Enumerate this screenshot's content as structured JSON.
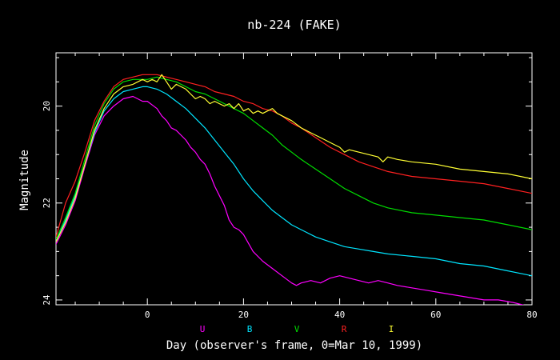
{
  "chart_data": {
    "type": "line",
    "title": "nb-224 (FAKE)",
    "xlabel": "Day (observer's frame, 0=Mar 10, 1999)",
    "ylabel": "Magnitude",
    "xlim": [
      -19,
      80
    ],
    "ylim": [
      24.1,
      18.9
    ],
    "y_inverted": true,
    "x_ticks": [
      0,
      20,
      40,
      60,
      80
    ],
    "y_ticks": [
      20,
      22,
      24
    ],
    "grid": false,
    "legend_position": "bottom",
    "background": "#000000",
    "axis_color": "#ffffff",
    "series": [
      {
        "name": "U",
        "color": "#ff00ff",
        "x": [
          -19,
          -17,
          -15,
          -13,
          -11,
          -9,
          -7,
          -5,
          -3,
          -1,
          0,
          2,
          3,
          4,
          5,
          6,
          7,
          8,
          9,
          10,
          11,
          12,
          13,
          14,
          15,
          16,
          17,
          18,
          19,
          20,
          22,
          24,
          26,
          28,
          30,
          31,
          32,
          34,
          36,
          38,
          40,
          42,
          44,
          46,
          48,
          50,
          52,
          55,
          58,
          61,
          64,
          67,
          70,
          73,
          76,
          80
        ],
        "y": [
          22.85,
          22.45,
          21.95,
          21.25,
          20.6,
          20.2,
          20.0,
          19.85,
          19.8,
          19.9,
          19.9,
          20.05,
          20.2,
          20.3,
          20.45,
          20.5,
          20.6,
          20.7,
          20.85,
          20.95,
          21.1,
          21.2,
          21.4,
          21.65,
          21.85,
          22.05,
          22.35,
          22.5,
          22.55,
          22.65,
          23.0,
          23.2,
          23.35,
          23.5,
          23.65,
          23.7,
          23.65,
          23.6,
          23.65,
          23.55,
          23.5,
          23.55,
          23.6,
          23.65,
          23.6,
          23.65,
          23.7,
          23.75,
          23.8,
          23.85,
          23.9,
          23.95,
          24.0,
          24.0,
          24.05,
          24.15
        ]
      },
      {
        "name": "B",
        "color": "#00e5ff",
        "x": [
          -19,
          -17,
          -15,
          -13,
          -11,
          -9,
          -7,
          -5,
          -3,
          -1,
          0,
          2,
          4,
          6,
          8,
          10,
          12,
          14,
          16,
          18,
          20,
          22,
          24,
          26,
          28,
          30,
          32,
          35,
          38,
          41,
          44,
          47,
          50,
          55,
          60,
          65,
          70,
          75,
          80
        ],
        "y": [
          22.8,
          22.35,
          21.85,
          21.2,
          20.55,
          20.1,
          19.85,
          19.7,
          19.65,
          19.6,
          19.6,
          19.65,
          19.75,
          19.9,
          20.05,
          20.25,
          20.45,
          20.7,
          20.95,
          21.2,
          21.5,
          21.75,
          21.95,
          22.15,
          22.3,
          22.45,
          22.55,
          22.7,
          22.8,
          22.9,
          22.95,
          23.0,
          23.05,
          23.1,
          23.15,
          23.25,
          23.3,
          23.4,
          23.5
        ]
      },
      {
        "name": "V",
        "color": "#00dd00",
        "x": [
          -19,
          -17,
          -15,
          -13,
          -11,
          -9,
          -7,
          -5,
          -3,
          -1,
          0,
          2,
          4,
          6,
          8,
          10,
          12,
          14,
          16,
          18,
          20,
          22,
          24,
          26,
          28,
          30,
          32,
          35,
          38,
          41,
          44,
          47,
          50,
          55,
          60,
          65,
          70,
          75,
          80
        ],
        "y": [
          22.75,
          22.3,
          21.8,
          21.1,
          20.4,
          19.95,
          19.65,
          19.5,
          19.45,
          19.45,
          19.45,
          19.4,
          19.45,
          19.5,
          19.6,
          19.7,
          19.75,
          19.85,
          19.95,
          20.05,
          20.15,
          20.3,
          20.45,
          20.6,
          20.8,
          20.95,
          21.1,
          21.3,
          21.5,
          21.7,
          21.85,
          22.0,
          22.1,
          22.2,
          22.25,
          22.3,
          22.35,
          22.45,
          22.55
        ]
      },
      {
        "name": "R",
        "color": "#ff2020",
        "x": [
          -19,
          -17,
          -15,
          -13,
          -11,
          -9,
          -7,
          -5,
          -3,
          -1,
          0,
          2,
          4,
          6,
          8,
          10,
          12,
          14,
          16,
          18,
          20,
          22,
          24,
          26,
          28,
          30,
          32,
          35,
          38,
          41,
          44,
          47,
          50,
          55,
          60,
          65,
          70,
          75,
          80
        ],
        "y": [
          22.7,
          22.0,
          21.55,
          20.95,
          20.3,
          19.9,
          19.6,
          19.45,
          19.4,
          19.35,
          19.35,
          19.35,
          19.4,
          19.45,
          19.5,
          19.55,
          19.6,
          19.7,
          19.75,
          19.8,
          19.9,
          19.95,
          20.05,
          20.1,
          20.2,
          20.35,
          20.45,
          20.65,
          20.85,
          21.0,
          21.15,
          21.25,
          21.35,
          21.45,
          21.5,
          21.55,
          21.6,
          21.7,
          21.8
        ]
      },
      {
        "name": "I",
        "color": "#ffff33",
        "x": [
          -19,
          -17,
          -15,
          -13,
          -11,
          -9,
          -7,
          -5,
          -3,
          -2,
          -1,
          0,
          1,
          2,
          3,
          4,
          5,
          6,
          7,
          8,
          9,
          10,
          11,
          12,
          13,
          14,
          15,
          16,
          17,
          18,
          19,
          20,
          21,
          22,
          23,
          24,
          25,
          26,
          27,
          28,
          29,
          30,
          32,
          34,
          36,
          38,
          40,
          41,
          42,
          44,
          46,
          48,
          49,
          50,
          52,
          55,
          60,
          65,
          70,
          75,
          80
        ],
        "y": [
          22.8,
          22.4,
          21.9,
          21.2,
          20.5,
          20.05,
          19.75,
          19.6,
          19.55,
          19.5,
          19.45,
          19.5,
          19.45,
          19.5,
          19.35,
          19.5,
          19.65,
          19.55,
          19.6,
          19.65,
          19.75,
          19.85,
          19.8,
          19.85,
          19.95,
          19.9,
          19.95,
          20.0,
          19.95,
          20.05,
          19.95,
          20.1,
          20.05,
          20.15,
          20.1,
          20.15,
          20.1,
          20.05,
          20.15,
          20.2,
          20.25,
          20.3,
          20.45,
          20.55,
          20.65,
          20.75,
          20.85,
          20.95,
          20.9,
          20.95,
          21.0,
          21.05,
          21.15,
          21.05,
          21.1,
          21.15,
          21.2,
          21.3,
          21.35,
          21.4,
          21.5
        ]
      }
    ]
  }
}
